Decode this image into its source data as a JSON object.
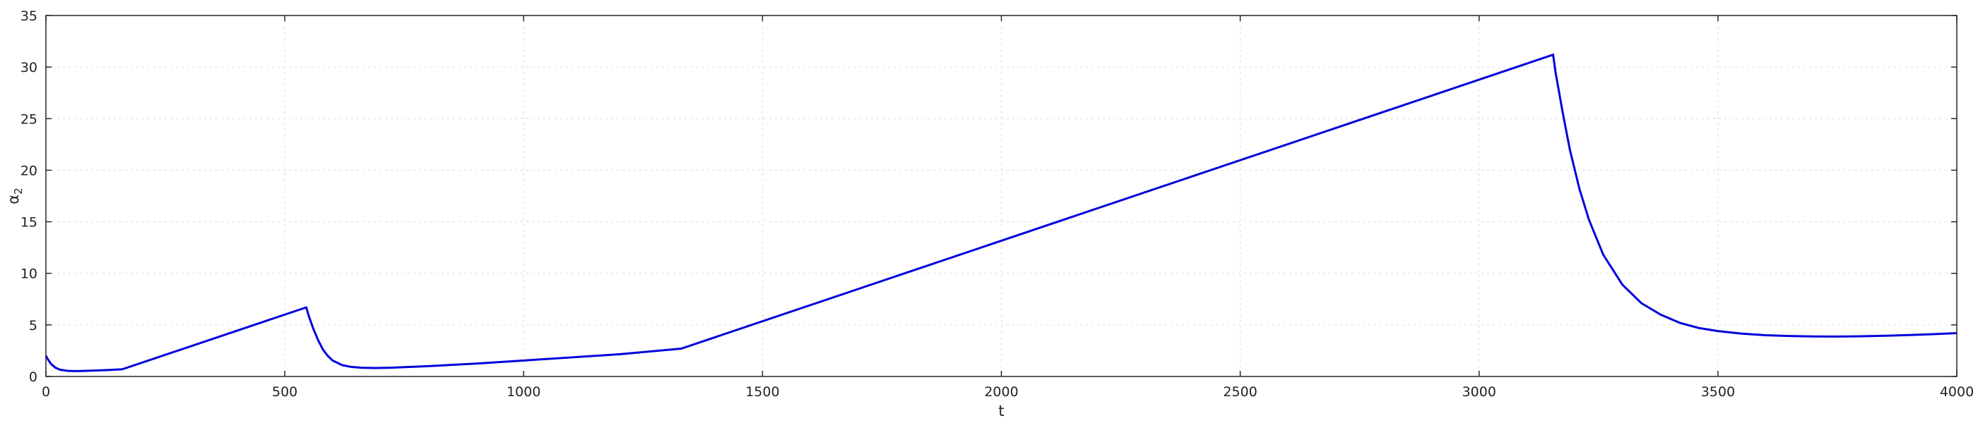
{
  "chart_data": {
    "type": "line",
    "title": "",
    "xlabel": "t",
    "ylabel_base": "α",
    "ylabel_sub": "2",
    "xlim": [
      0,
      4000
    ],
    "ylim": [
      0,
      35
    ],
    "xticks": [
      0,
      500,
      1000,
      1500,
      2000,
      2500,
      3000,
      3500,
      4000
    ],
    "yticks": [
      0,
      5,
      10,
      15,
      20,
      25,
      30,
      35
    ],
    "grid": true,
    "legend": "none",
    "series": [
      {
        "color": "#0000dd",
        "x": [
          0,
          5,
          10,
          20,
          30,
          45,
          60,
          80,
          100,
          130,
          160,
          545,
          550,
          560,
          570,
          580,
          590,
          600,
          620,
          640,
          660,
          690,
          720,
          800,
          900,
          1000,
          1100,
          1200,
          1330,
          3155,
          3160,
          3175,
          3190,
          3210,
          3230,
          3260,
          3300,
          3340,
          3380,
          3420,
          3460,
          3500,
          3550,
          3600,
          3650,
          3700,
          3750,
          3800,
          3850,
          3900,
          3950,
          4000
        ],
        "y": [
          2.0,
          1.6,
          1.25,
          0.85,
          0.65,
          0.55,
          0.52,
          0.54,
          0.57,
          0.62,
          0.7,
          6.7,
          5.9,
          4.6,
          3.5,
          2.6,
          2.0,
          1.55,
          1.1,
          0.92,
          0.85,
          0.82,
          0.85,
          1.0,
          1.25,
          1.55,
          1.85,
          2.15,
          2.7,
          31.2,
          29.5,
          25.6,
          22.0,
          18.2,
          15.2,
          11.8,
          8.9,
          7.1,
          6.0,
          5.2,
          4.7,
          4.4,
          4.15,
          4.0,
          3.92,
          3.88,
          3.87,
          3.9,
          3.95,
          4.02,
          4.1,
          4.2
        ]
      }
    ]
  }
}
